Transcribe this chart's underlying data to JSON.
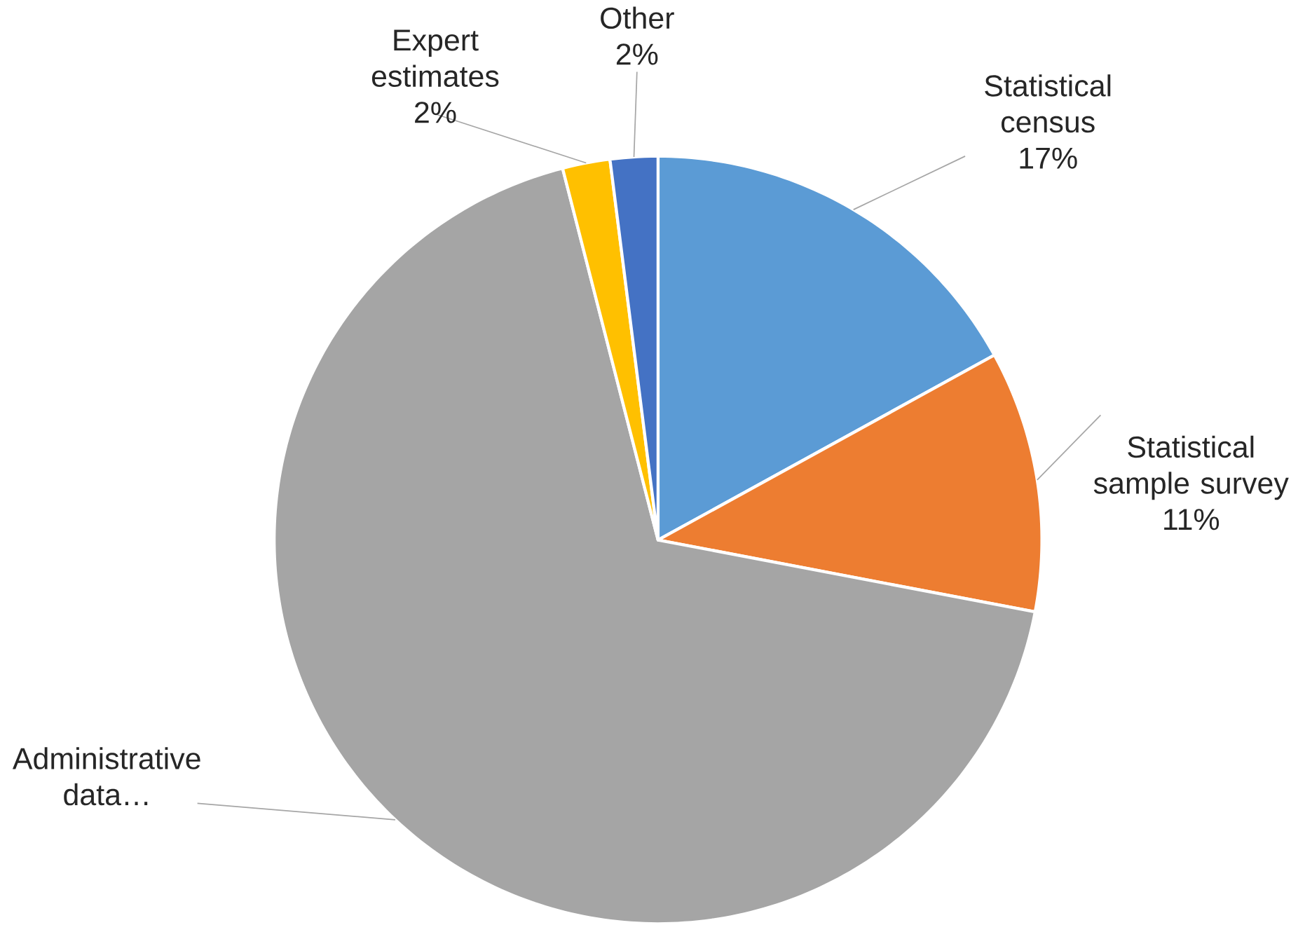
{
  "chart_data": {
    "type": "pie",
    "categories": [
      "Statistical census",
      "Statistical sample survey",
      "Administrative data…",
      "Expert estimates",
      "Other"
    ],
    "values": [
      17,
      11,
      68,
      2,
      2
    ],
    "colors": [
      "#5b9bd5",
      "#ed7d31",
      "#a5a5a5",
      "#ffc000",
      "#4472c4"
    ],
    "value_labels": [
      "17%",
      "11%",
      null,
      "2%",
      "2%"
    ]
  }
}
